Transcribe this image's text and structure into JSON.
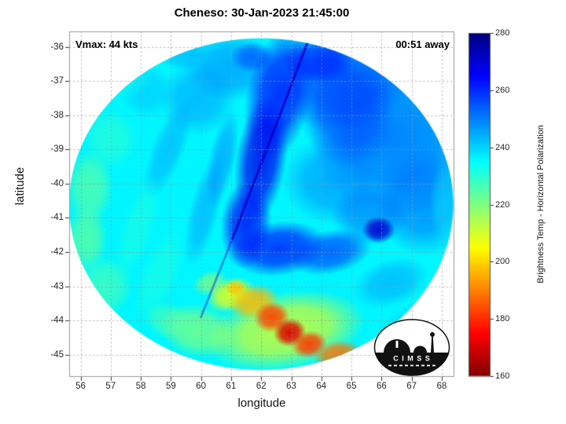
{
  "title": "Cheneso: 30-Jan-2023 21:45:00",
  "annotations": {
    "vmax": "Vmax: 44 kts",
    "time_offset": "00:51 away"
  },
  "logo": {
    "text": "C I M S S"
  },
  "chart_data": {
    "type": "heatmap",
    "title": "Cheneso: 30-Jan-2023 21:45:00",
    "storm": {
      "name": "Cheneso",
      "datetime": "30-Jan-2023 21:45:00",
      "vmax_kts": 44,
      "time_offset_hhmm": "00:51"
    },
    "xlabel": "longitude",
    "ylabel": "latitude",
    "axes": {
      "xlim": [
        55.62,
        68.42
      ],
      "ylim": [
        -45.65,
        -35.55
      ],
      "xticks": [
        56,
        57,
        58,
        59,
        60,
        61,
        62,
        63,
        64,
        65,
        66,
        67,
        68
      ],
      "yticks": [
        -36,
        -37,
        -38,
        -39,
        -40,
        -41,
        -42,
        -43,
        -44,
        -45
      ],
      "grid": "dashed"
    },
    "colorbar": {
      "label": "Brightness Temp - Horizontal Polarization",
      "min": 160,
      "max": 280,
      "ticks": [
        160,
        180,
        200,
        220,
        240,
        260,
        280
      ],
      "colormap": "jet (280=dark blue top, 160=dark red bottom)"
    },
    "disk": {
      "center_lon": 62.0,
      "center_lat": -40.6,
      "rx_deg": 6.38,
      "ry_deg": 4.85,
      "base_temp_K": 236
    },
    "blob_fields": [
      "lon",
      "lat",
      "rx_deg",
      "ry_deg",
      "rot_deg",
      "temp_K",
      "alpha"
    ],
    "blobs": [
      [
        66.4,
        -38.6,
        2.8,
        2.4,
        0,
        254,
        0.75
      ],
      [
        64.9,
        -36.9,
        2.3,
        1.5,
        -20,
        257,
        0.7
      ],
      [
        67.4,
        -40.5,
        1.7,
        1.6,
        0,
        252,
        0.7
      ],
      [
        64.4,
        -39.9,
        1.7,
        1.3,
        0,
        250,
        0.6
      ],
      [
        65.6,
        -40.9,
        1.3,
        0.9,
        0,
        253,
        0.6
      ],
      [
        64.8,
        -37.8,
        1.6,
        1.8,
        -15,
        258,
        0.65
      ],
      [
        61.0,
        -36.6,
        1.6,
        1.0,
        0,
        250,
        0.6
      ],
      [
        59.9,
        -37.5,
        1.3,
        1.1,
        0,
        248,
        0.55
      ],
      [
        59.4,
        -36.2,
        0.8,
        0.5,
        0,
        247,
        0.5
      ],
      [
        63.9,
        -36.4,
        1.2,
        0.7,
        0,
        262,
        0.75
      ],
      [
        61.7,
        -36.3,
        0.7,
        0.45,
        0,
        257,
        0.65
      ],
      [
        62.6,
        -37.4,
        1.1,
        2.0,
        12,
        263,
        0.85
      ],
      [
        62.0,
        -39.3,
        0.85,
        1.9,
        8,
        267,
        0.85
      ],
      [
        61.5,
        -41.2,
        0.85,
        1.3,
        4,
        266,
        0.8
      ],
      [
        62.6,
        -41.9,
        1.6,
        0.8,
        -8,
        263,
        0.8
      ],
      [
        64.3,
        -42.0,
        1.4,
        0.65,
        -12,
        258,
        0.75
      ],
      [
        65.9,
        -41.35,
        0.55,
        0.4,
        0,
        271,
        0.9
      ],
      [
        58.9,
        -39.0,
        0.55,
        1.6,
        22,
        247,
        0.5
      ],
      [
        60.1,
        -40.8,
        0.5,
        1.7,
        14,
        248,
        0.5
      ],
      [
        60.7,
        -39.3,
        0.45,
        1.5,
        12,
        251,
        0.5
      ],
      [
        58.2,
        -37.3,
        0.9,
        0.8,
        0,
        243,
        0.5
      ],
      [
        57.5,
        -36.9,
        0.9,
        0.6,
        0,
        233,
        0.5
      ],
      [
        57.0,
        -38.7,
        0.9,
        0.9,
        0,
        229,
        0.6
      ],
      [
        56.3,
        -40.1,
        0.8,
        1.1,
        0,
        224,
        0.75
      ],
      [
        56.2,
        -41.6,
        0.7,
        1.0,
        0,
        223,
        0.75
      ],
      [
        56.8,
        -43.0,
        0.95,
        0.9,
        10,
        226,
        0.7
      ],
      [
        57.9,
        -41.3,
        0.55,
        1.6,
        18,
        231,
        0.55
      ],
      [
        58.6,
        -42.7,
        0.65,
        1.5,
        22,
        231,
        0.55
      ],
      [
        59.9,
        -44.3,
        1.3,
        0.8,
        12,
        219,
        0.75
      ],
      [
        58.9,
        -44.0,
        0.8,
        0.55,
        15,
        224,
        0.6
      ],
      [
        66.3,
        -42.9,
        1.3,
        0.7,
        -18,
        247,
        0.55
      ],
      [
        67.0,
        -44.0,
        1.0,
        0.5,
        -22,
        241,
        0.5
      ],
      [
        68.1,
        -40.6,
        0.5,
        1.3,
        0,
        236,
        0.4
      ],
      [
        64.2,
        -43.3,
        1.3,
        0.6,
        -8,
        237,
        0.5
      ],
      [
        60.3,
        -42.9,
        0.6,
        0.35,
        -20,
        215,
        0.6
      ],
      [
        62.8,
        -44.3,
        2.7,
        1.15,
        -10,
        210,
        0.85
      ],
      [
        61.0,
        -43.25,
        0.85,
        0.5,
        -18,
        206,
        0.85
      ],
      [
        61.15,
        -43.05,
        0.35,
        0.25,
        0,
        198,
        0.85
      ],
      [
        61.75,
        -43.45,
        0.85,
        0.5,
        -12,
        197,
        0.9
      ],
      [
        62.35,
        -43.9,
        0.6,
        0.45,
        -10,
        183,
        0.95
      ],
      [
        62.95,
        -44.35,
        0.55,
        0.42,
        -12,
        171,
        0.95
      ],
      [
        63.6,
        -44.7,
        0.6,
        0.4,
        -14,
        181,
        0.9
      ],
      [
        64.55,
        -45.0,
        0.85,
        0.42,
        -8,
        189,
        0.9
      ],
      [
        65.45,
        -45.25,
        0.7,
        0.36,
        -6,
        184,
        0.9
      ],
      [
        66.2,
        -44.75,
        0.7,
        0.4,
        -15,
        212,
        0.7
      ]
    ],
    "edge_fields": [
      "lon1",
      "lat1",
      "lon2",
      "lat2",
      "temp_K",
      "width_px",
      "alpha"
    ],
    "edges": [
      [
        63.55,
        -35.85,
        61.05,
        -41.6,
        272,
        3,
        0.85
      ],
      [
        61.05,
        -41.6,
        60.0,
        -43.9,
        268,
        2.5,
        0.45
      ]
    ]
  }
}
